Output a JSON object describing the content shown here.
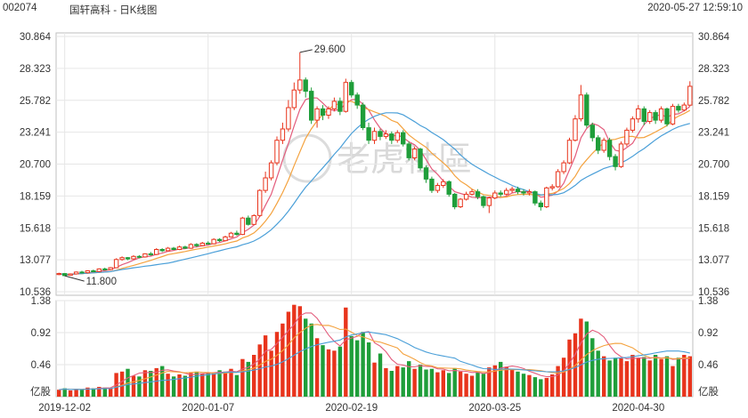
{
  "header": {
    "code": "002074",
    "title": "国轩高科 - 日K线图",
    "timestamp": "2020-05-27 12:59:10"
  },
  "watermark": "老虎社區",
  "colors": {
    "up": "#e8341c",
    "down": "#1f9e3a",
    "ma5": "#e35c7c",
    "ma10": "#f4a23e",
    "ma20": "#4a9fd8",
    "grid": "#e6e6e6",
    "axis": "#bfbfbf"
  },
  "chart_data": [
    {
      "type": "candlestick",
      "name": "price",
      "y_ticks": [
        "30.864",
        "28.323",
        "25.782",
        "23.241",
        "20.700",
        "18.159",
        "15.618",
        "13.077",
        "10.536"
      ],
      "ylim": [
        10.536,
        30.864
      ],
      "annotations": [
        {
          "label": "29.600",
          "value": 29.6,
          "index": 42
        },
        {
          "label": "11.800",
          "value": 11.8,
          "index": 1
        }
      ],
      "x_labels": [
        {
          "index": 1,
          "label": "2019-12-02"
        },
        {
          "index": 26,
          "label": "2020-01-07"
        },
        {
          "index": 51,
          "label": "2020-02-19"
        },
        {
          "index": 76,
          "label": "2020-03-25"
        },
        {
          "index": 101,
          "label": "2020-04-30"
        }
      ],
      "ma_colors": [
        "#e35c7c",
        "#f4a23e",
        "#4a9fd8"
      ],
      "candles": [
        [
          11.9,
          11.98,
          12.05,
          11.85
        ],
        [
          11.98,
          11.82,
          12.02,
          11.8
        ],
        [
          11.85,
          11.95,
          12.0,
          11.82
        ],
        [
          11.95,
          12.1,
          12.15,
          11.9
        ],
        [
          12.1,
          12.05,
          12.2,
          12.0
        ],
        [
          12.05,
          12.2,
          12.25,
          12.0
        ],
        [
          12.2,
          12.15,
          12.3,
          12.1
        ],
        [
          12.15,
          12.35,
          12.4,
          12.1
        ],
        [
          12.35,
          12.3,
          12.45,
          12.25
        ],
        [
          12.3,
          12.45,
          12.5,
          12.25
        ],
        [
          12.45,
          13.1,
          13.2,
          12.4
        ],
        [
          13.1,
          13.25,
          13.35,
          13.0
        ],
        [
          13.25,
          13.15,
          13.3,
          13.05
        ],
        [
          13.15,
          13.35,
          13.45,
          13.1
        ],
        [
          13.35,
          13.3,
          13.45,
          13.2
        ],
        [
          13.3,
          13.55,
          13.6,
          13.25
        ],
        [
          13.55,
          13.5,
          13.7,
          13.4
        ],
        [
          13.5,
          13.9,
          14.0,
          13.45
        ],
        [
          13.9,
          13.8,
          14.0,
          13.7
        ],
        [
          13.8,
          14.0,
          14.1,
          13.75
        ],
        [
          14.0,
          13.9,
          14.1,
          13.85
        ],
        [
          13.9,
          14.1,
          14.2,
          13.85
        ],
        [
          14.1,
          14.0,
          14.2,
          13.95
        ],
        [
          14.0,
          14.3,
          14.4,
          13.95
        ],
        [
          14.3,
          14.2,
          14.4,
          14.1
        ],
        [
          14.2,
          14.4,
          14.5,
          14.15
        ],
        [
          14.4,
          14.35,
          14.55,
          14.3
        ],
        [
          14.35,
          14.7,
          14.8,
          14.3
        ],
        [
          14.7,
          14.6,
          14.8,
          14.5
        ],
        [
          14.6,
          14.9,
          15.0,
          14.55
        ],
        [
          14.9,
          15.2,
          15.3,
          14.85
        ],
        [
          15.2,
          15.1,
          15.4,
          15.0
        ],
        [
          15.1,
          16.4,
          16.5,
          15.05
        ],
        [
          16.4,
          15.9,
          16.6,
          15.8
        ],
        [
          15.9,
          16.6,
          16.7,
          15.85
        ],
        [
          16.6,
          18.6,
          18.7,
          16.5
        ],
        [
          18.6,
          19.6,
          20.1,
          18.4
        ],
        [
          19.6,
          20.8,
          21.0,
          19.4
        ],
        [
          20.8,
          22.6,
          22.9,
          20.6
        ],
        [
          22.6,
          23.5,
          24.0,
          22.3
        ],
        [
          23.5,
          25.2,
          25.8,
          23.3
        ],
        [
          25.2,
          26.6,
          27.2,
          25.0
        ],
        [
          26.6,
          27.4,
          29.6,
          26.3
        ],
        [
          27.4,
          26.5,
          27.6,
          26.0
        ],
        [
          26.5,
          24.2,
          26.8,
          23.9
        ],
        [
          24.2,
          25.1,
          25.3,
          23.6
        ],
        [
          25.1,
          24.6,
          25.4,
          24.2
        ],
        [
          24.6,
          25.1,
          25.3,
          24.3
        ],
        [
          25.1,
          25.7,
          26.0,
          24.9
        ],
        [
          25.7,
          24.9,
          26.0,
          24.6
        ],
        [
          24.9,
          27.2,
          27.5,
          24.8
        ],
        [
          27.2,
          26.2,
          27.4,
          26.0
        ],
        [
          26.2,
          25.4,
          26.4,
          25.1
        ],
        [
          25.4,
          23.6,
          25.6,
          23.4
        ],
        [
          23.6,
          22.6,
          24.0,
          22.3
        ],
        [
          22.6,
          23.3,
          23.6,
          22.3
        ],
        [
          23.3,
          22.9,
          23.5,
          22.6
        ],
        [
          22.9,
          23.1,
          23.4,
          22.7
        ],
        [
          23.1,
          22.6,
          23.3,
          22.3
        ],
        [
          22.6,
          23.2,
          23.4,
          22.4
        ],
        [
          23.2,
          22.3,
          23.4,
          22.1
        ],
        [
          22.3,
          21.2,
          22.5,
          21.0
        ],
        [
          21.2,
          21.9,
          22.1,
          21.0
        ],
        [
          21.9,
          20.4,
          22.0,
          20.2
        ],
        [
          20.4,
          19.5,
          20.6,
          19.2
        ],
        [
          19.5,
          18.6,
          19.7,
          18.4
        ],
        [
          18.6,
          19.0,
          19.2,
          18.4
        ],
        [
          19.0,
          19.3,
          19.5,
          18.8
        ],
        [
          19.3,
          18.3,
          19.4,
          18.1
        ],
        [
          18.3,
          17.3,
          18.4,
          17.1
        ],
        [
          17.3,
          17.9,
          18.0,
          17.2
        ],
        [
          17.9,
          18.3,
          18.5,
          17.8
        ],
        [
          18.3,
          18.5,
          18.7,
          18.2
        ],
        [
          18.5,
          18.1,
          18.7,
          17.9
        ],
        [
          18.1,
          17.4,
          18.2,
          17.2
        ],
        [
          17.4,
          18.0,
          18.1,
          16.8
        ],
        [
          18.0,
          18.4,
          18.6,
          17.9
        ],
        [
          18.4,
          18.3,
          18.6,
          18.1
        ],
        [
          18.3,
          18.6,
          18.8,
          18.2
        ],
        [
          18.6,
          18.7,
          18.9,
          18.4
        ],
        [
          18.7,
          18.5,
          18.9,
          18.3
        ],
        [
          18.5,
          18.4,
          18.7,
          18.2
        ],
        [
          18.4,
          18.5,
          18.7,
          18.2
        ],
        [
          18.5,
          17.6,
          18.6,
          17.4
        ],
        [
          17.6,
          17.3,
          17.8,
          17.0
        ],
        [
          17.3,
          18.8,
          18.9,
          17.2
        ],
        [
          18.8,
          18.9,
          19.1,
          18.6
        ],
        [
          18.9,
          20.1,
          20.3,
          18.8
        ],
        [
          20.1,
          20.8,
          21.0,
          19.9
        ],
        [
          20.8,
          22.6,
          22.8,
          20.7
        ],
        [
          22.6,
          24.3,
          24.6,
          22.5
        ],
        [
          24.3,
          26.2,
          27.0,
          24.1
        ],
        [
          26.2,
          23.8,
          26.4,
          23.6
        ],
        [
          23.8,
          22.8,
          24.0,
          22.5
        ],
        [
          22.8,
          21.8,
          23.0,
          21.5
        ],
        [
          21.8,
          22.6,
          22.8,
          21.6
        ],
        [
          22.6,
          21.3,
          22.8,
          21.0
        ],
        [
          21.3,
          20.5,
          21.5,
          20.2
        ],
        [
          20.5,
          22.3,
          22.5,
          20.4
        ],
        [
          22.3,
          23.4,
          23.6,
          22.1
        ],
        [
          23.4,
          24.3,
          24.5,
          23.2
        ],
        [
          24.3,
          25.1,
          25.4,
          24.0
        ],
        [
          25.1,
          24.1,
          25.3,
          23.8
        ],
        [
          24.1,
          24.8,
          25.0,
          23.9
        ],
        [
          24.8,
          24.2,
          25.0,
          23.9
        ],
        [
          24.2,
          25.1,
          25.3,
          24.0
        ],
        [
          25.1,
          23.9,
          25.2,
          23.7
        ],
        [
          23.9,
          25.3,
          25.5,
          23.8
        ],
        [
          25.3,
          25.0,
          25.5,
          24.8
        ],
        [
          25.0,
          25.4,
          25.6,
          24.9
        ],
        [
          25.4,
          26.9,
          27.3,
          25.3
        ]
      ]
    },
    {
      "type": "bar",
      "name": "volume",
      "unit": "亿股",
      "y_ticks": [
        "1.38",
        "0.92",
        "0.46"
      ],
      "ylim": [
        0,
        1.38
      ],
      "ma_colors": [
        "#e35c7c",
        "#f4a23e",
        "#4a9fd8"
      ],
      "values": [
        0.1,
        0.12,
        0.09,
        0.11,
        0.1,
        0.13,
        0.12,
        0.14,
        0.13,
        0.12,
        0.34,
        0.36,
        0.4,
        0.3,
        0.29,
        0.38,
        0.37,
        0.41,
        0.44,
        0.33,
        0.29,
        0.32,
        0.3,
        0.34,
        0.36,
        0.33,
        0.35,
        0.34,
        0.38,
        0.36,
        0.4,
        0.31,
        0.54,
        0.5,
        0.6,
        0.75,
        0.88,
        0.66,
        0.93,
        1.05,
        1.22,
        1.32,
        1.3,
        1.12,
        1.05,
        0.84,
        0.74,
        0.68,
        0.66,
        0.72,
        1.28,
        0.87,
        0.81,
        0.93,
        0.78,
        0.49,
        0.62,
        0.41,
        0.37,
        0.44,
        0.42,
        0.51,
        0.4,
        0.46,
        0.39,
        0.4,
        0.35,
        0.38,
        0.34,
        0.41,
        0.36,
        0.33,
        0.3,
        0.35,
        0.33,
        0.42,
        0.45,
        0.5,
        0.43,
        0.4,
        0.36,
        0.33,
        0.31,
        0.28,
        0.25,
        0.27,
        0.32,
        0.44,
        0.56,
        0.82,
        0.91,
        1.12,
        1.08,
        0.84,
        0.66,
        0.58,
        0.52,
        0.56,
        0.55,
        0.51,
        0.6,
        0.55,
        0.57,
        0.52,
        0.6,
        0.54,
        0.58,
        0.44,
        0.56,
        0.6,
        0.58
      ]
    }
  ]
}
